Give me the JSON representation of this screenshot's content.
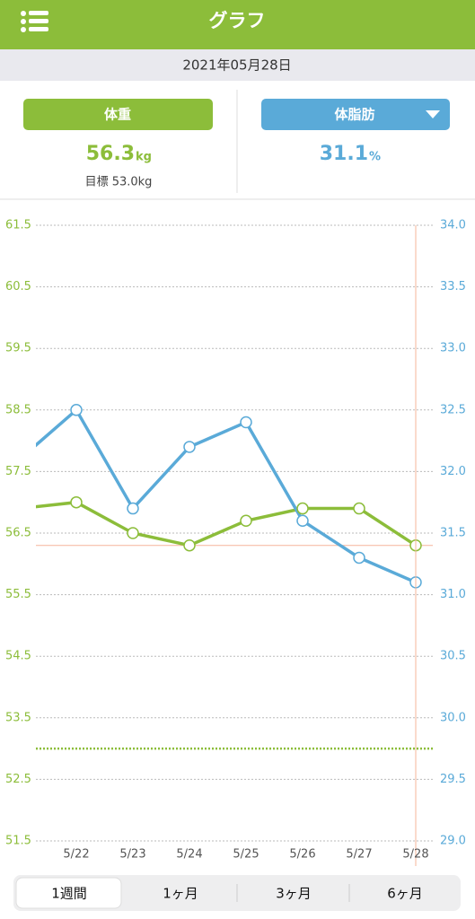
{
  "header": {
    "title": "グラフ"
  },
  "date": "2021年05月28日",
  "weight": {
    "value": "56.3",
    "unit": "kg",
    "target": "目標 53.0kg"
  },
  "body_fat": {
    "value": "31.1",
    "unit": "%"
  },
  "chart_data": {
    "type": "line",
    "categories": [
      null,
      "5/22",
      "5/23",
      "5/24",
      "5/25",
      "5/26",
      "5/27",
      "5/28"
    ],
    "series": [
      {
        "name": "体重",
        "color": "#8cbd3a",
        "values": [
          56.9,
          57.0,
          56.5,
          56.3,
          56.7,
          56.9,
          56.9,
          56.3
        ]
      },
      {
        "name": "体脂肪",
        "color": "#5aaad8",
        "axis": "y2",
        "values": [
          32.1,
          32.5,
          31.7,
          32.2,
          32.4,
          31.6,
          31.3,
          31.1
        ]
      }
    ],
    "ylim": [
      51.5,
      61.5
    ],
    "yticks": [
      51.5,
      52.5,
      53.5,
      54.5,
      55.5,
      56.5,
      57.5,
      58.5,
      59.5,
      60.5,
      61.5
    ],
    "y2lim": [
      29,
      34
    ],
    "y2ticks": [
      {
        "value": 29,
        "label": "29.0"
      },
      29.5,
      {
        "value": 30,
        "label": "30.0"
      },
      30.5,
      {
        "value": 31,
        "label": "31.0"
      },
      31.5,
      {
        "value": 32,
        "label": "32.0"
      },
      32.5,
      {
        "value": 33,
        "label": "33.0"
      },
      33.5,
      {
        "value": 34,
        "label": "34.0"
      }
    ],
    "target": 53,
    "grid": true
  },
  "tabs": [
    "1週間",
    "1ヶ月",
    "3ヶ月",
    "6ヶ月"
  ]
}
